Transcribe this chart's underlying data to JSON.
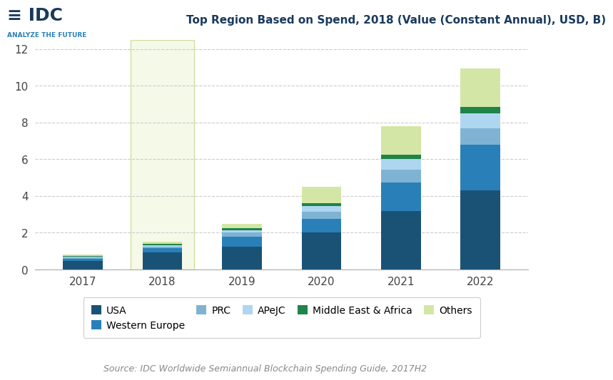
{
  "title": "Top Region Based on Spend, 2018 (Value (Constant Annual), USD, B)",
  "years": [
    "2017",
    "2018",
    "2019",
    "2020",
    "2021",
    "2022"
  ],
  "categories": [
    "USA",
    "Western Europe",
    "PRC",
    "APeJC",
    "Middle East & Africa",
    "Others"
  ],
  "colors": [
    "#1a5276",
    "#2980b9",
    "#7fb3d3",
    "#aed6f1",
    "#1e8449",
    "#d4e6a5"
  ],
  "data": {
    "USA": [
      0.45,
      0.95,
      1.25,
      2.0,
      3.2,
      4.3
    ],
    "Western Europe": [
      0.15,
      0.2,
      0.55,
      0.75,
      1.55,
      2.5
    ],
    "PRC": [
      0.06,
      0.1,
      0.2,
      0.4,
      0.7,
      0.9
    ],
    "APeJC": [
      0.05,
      0.08,
      0.15,
      0.3,
      0.55,
      0.8
    ],
    "Middle East & Africa": [
      0.03,
      0.05,
      0.1,
      0.15,
      0.25,
      0.35
    ],
    "Others": [
      0.06,
      0.12,
      0.25,
      0.9,
      1.55,
      2.1
    ]
  },
  "ylim": [
    0,
    12.5
  ],
  "yticks": [
    0,
    2,
    4,
    6,
    8,
    10,
    12
  ],
  "highlight_year": "2018",
  "highlight_color": "#f5f9e8",
  "highlight_edge_color": "#d0e0a0",
  "bar_width": 0.5,
  "source_text": "Source: IDC Worldwide Semiannual Blockchain Spending Guide, 2017H2",
  "background_color": "#ffffff",
  "grid_color": "#cccccc",
  "legend_labels": [
    "USA",
    "Western Europe",
    "PRC",
    "APeJC",
    "Middle East & Africa",
    "Others"
  ]
}
